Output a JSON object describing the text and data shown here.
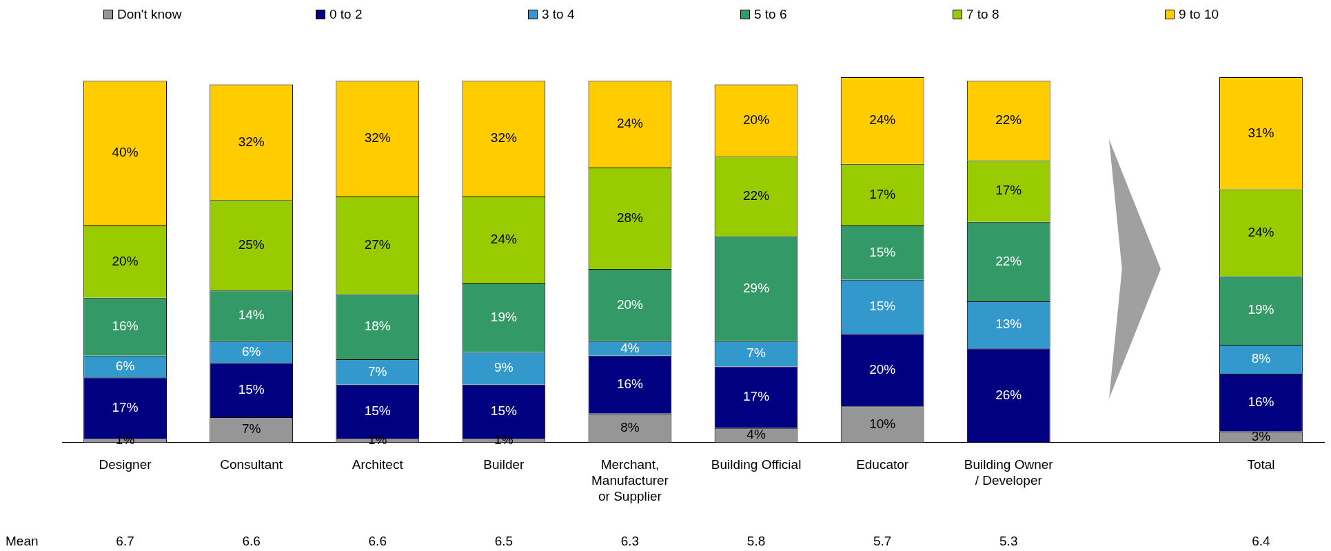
{
  "chart_data": {
    "type": "bar",
    "stacked": true,
    "legend": "top",
    "grid": false,
    "tick_labels": "x",
    "categories": [
      "Designer",
      "Consultant",
      "Architect",
      "Builder",
      "Merchant,\nManufacturer\nor Supplier",
      "Building Official",
      "Educator",
      "Building Owner\n/ Developer",
      null,
      "Total"
    ],
    "series": [
      {
        "name": "Don't know",
        "color": "#969696",
        "values": [
          1,
          7,
          1,
          1,
          8,
          4,
          10,
          null,
          null,
          3
        ],
        "value_labels": [
          "1%",
          "7%",
          "1%",
          "1%",
          "8%",
          "4%",
          "10%",
          null,
          null,
          "3%"
        ]
      },
      {
        "name": "0 to 2",
        "color": "#000080",
        "values": [
          17,
          15,
          15,
          15,
          16,
          17,
          20,
          26,
          null,
          16
        ],
        "value_labels": [
          "17%",
          "15%",
          "15%",
          "15%",
          "16%",
          "17%",
          "20%",
          "26%",
          null,
          "16%"
        ]
      },
      {
        "name": "3 to 4",
        "color": "#3399cc",
        "values": [
          6,
          6,
          7,
          9,
          4,
          7,
          15,
          13,
          null,
          8
        ],
        "value_labels": [
          "6%",
          "6%",
          "7%",
          "9%",
          "4%",
          "7%",
          "15%",
          "13%",
          null,
          "8%"
        ]
      },
      {
        "name": "5 to 6",
        "color": "#339966",
        "values": [
          16,
          14,
          18,
          19,
          20,
          29,
          15,
          22,
          null,
          19
        ],
        "value_labels": [
          "16%",
          "14%",
          "18%",
          "19%",
          "20%",
          "29%",
          "15%",
          "22%",
          null,
          "19%"
        ]
      },
      {
        "name": "7 to 8",
        "color": "#99cc00",
        "values": [
          20,
          25,
          27,
          24,
          28,
          22,
          17,
          17,
          null,
          24
        ],
        "value_labels": [
          "20%",
          "25%",
          "27%",
          "24%",
          "28%",
          "22%",
          "17%",
          "17%",
          null,
          "24%"
        ]
      },
      {
        "name": "9 to 10",
        "color": "#ffcc00",
        "values": [
          40,
          32,
          32,
          32,
          24,
          20,
          24,
          22,
          null,
          31
        ],
        "value_labels": [
          "40%",
          "32%",
          "32%",
          "32%",
          "24%",
          "20%",
          "24%",
          "22%",
          null,
          "31%"
        ]
      }
    ],
    "annotations": [
      "Mean",
      "6.7",
      "6.6",
      "6.6",
      "6.5",
      "6.3",
      "5.8",
      "5.7",
      "5.3",
      "6.4"
    ]
  }
}
